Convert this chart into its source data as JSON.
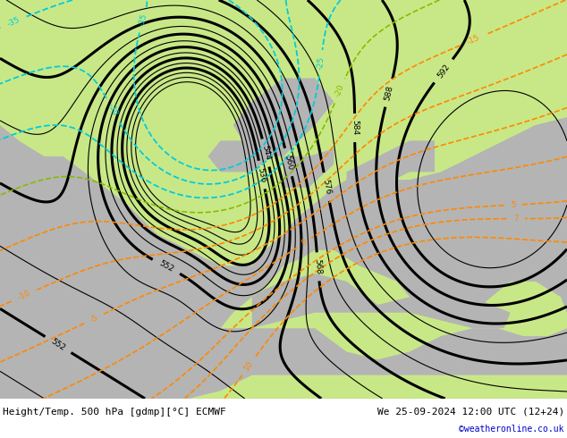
{
  "title_left": "Height/Temp. 500 hPa [gdmp][°C] ECMWF",
  "title_right": "We 25-09-2024 12:00 UTC (12+24)",
  "credit": "©weatheronline.co.uk",
  "background_color": "#ffffff",
  "map_green_color": "#c8e887",
  "map_gray_color": "#b4b4b4",
  "contour_black_color": "#000000",
  "contour_cyan_color": "#00ccdd",
  "contour_orange_color": "#ff8800",
  "contour_red_color": "#dd0000",
  "contour_ygreen_color": "#88bb00",
  "label_fontsize": 6.5,
  "title_fontsize": 8,
  "credit_fontsize": 7,
  "figsize": [
    6.34,
    4.9
  ],
  "dpi": 100
}
